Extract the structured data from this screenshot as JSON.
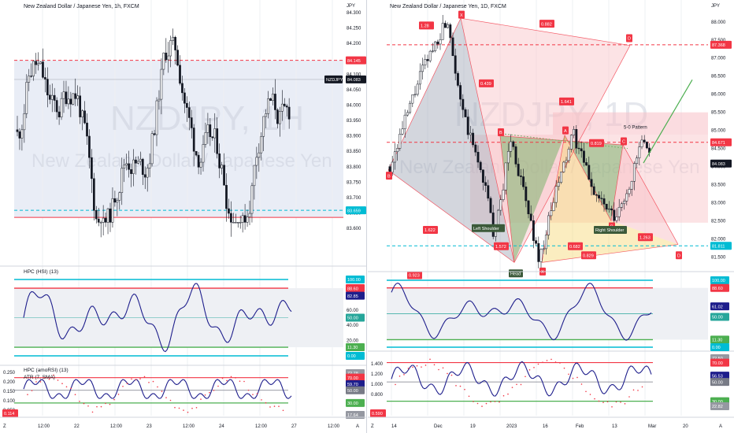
{
  "left": {
    "title": "New Zealand Dollar / Japanese Yen, 1h, FXCM",
    "watermark": "NZDJPY, 1H",
    "watermark_sub": "New Zealand Dollar / Japanese Yen",
    "currency": "JPY",
    "y_ticks": [
      "84.300",
      "84.250",
      "84.200",
      "84.150",
      "84.100",
      "84.050",
      "84.000",
      "83.950",
      "83.900",
      "83.850",
      "83.800",
      "83.750",
      "83.700",
      "83.650",
      "83.600"
    ],
    "ylim": [
      83.575,
      84.315
    ],
    "price_labels": [
      {
        "text": "84.145",
        "value": 84.145,
        "color": "#f23645"
      },
      {
        "text": "NZDJPY",
        "value": 84.083,
        "color": "#131722"
      },
      {
        "text": "84.083",
        "value": 84.083,
        "color": "#131722"
      },
      {
        "text": "83.659",
        "value": 83.659,
        "color": "#00bcd4"
      }
    ],
    "hlines": [
      {
        "value": 84.145,
        "color": "#f23645",
        "dash": true
      },
      {
        "value": 83.659,
        "color": "#00bcd4",
        "dash": true
      },
      {
        "value": 83.636,
        "color": "#f23645",
        "dash": false
      }
    ],
    "x_ticks": [
      "12:00",
      "22",
      "12:00",
      "23",
      "12:00",
      "24",
      "12:00",
      "27",
      "12:00"
    ],
    "ind1": {
      "title": "HPC (HSI) (13)",
      "y_ticks": [
        "80.00",
        "60.00",
        "40.00",
        "20.00"
      ],
      "labels": [
        {
          "text": "100.00",
          "color": "#00bcd4"
        },
        {
          "text": "88.60",
          "color": "#f23645"
        },
        {
          "text": "82.85",
          "color": "#1e1e8c"
        },
        {
          "text": "50.00",
          "color": "#26a69a"
        },
        {
          "text": "11.30",
          "color": "#4caf50"
        },
        {
          "text": "0.00",
          "color": "#00bcd4"
        }
      ]
    },
    "ind2": {
      "title": "HPC (amoRSI) (13)",
      "title2": "ATR (7, SMA)",
      "y_ticks": [
        "0.250",
        "0.200",
        "0.150",
        "0.100",
        "0.050"
      ],
      "labels": [
        {
          "text": "72.78",
          "color": "#9598a1"
        },
        {
          "text": "70.00",
          "color": "#f23645"
        },
        {
          "text": "59.70",
          "color": "#1e1e8c"
        },
        {
          "text": "50.00",
          "color": "#787b86"
        },
        {
          "text": "30.00",
          "color": "#4caf50"
        },
        {
          "text": "17.64",
          "color": "#9598a1"
        }
      ],
      "left_badge": "0.114"
    }
  },
  "right": {
    "title": "New Zealand Dollar / Japanese Yen, 1D, FXCM",
    "watermark": "NZDJPY, 1D",
    "watermark_sub": "New Zealand Dollar / Japanese Yen",
    "currency": "JPY",
    "y_ticks": [
      "88.000",
      "87.500",
      "87.000",
      "86.500",
      "86.000",
      "85.500",
      "85.000",
      "84.500",
      "84.000",
      "83.500",
      "83.000",
      "82.500",
      "82.000",
      "81.500"
    ],
    "ylim": [
      81.25,
      88.3
    ],
    "price_labels": [
      {
        "text": "87.368",
        "value": 87.368,
        "color": "#f23645"
      },
      {
        "text": "84.671",
        "value": 84.671,
        "color": "#f23645"
      },
      {
        "text": "84.083",
        "value": 84.083,
        "color": "#131722"
      },
      {
        "text": "81.811",
        "value": 81.811,
        "color": "#00bcd4"
      }
    ],
    "x_ticks": [
      "14",
      "Dec",
      "19",
      "2023",
      "16",
      "Feb",
      "13",
      "Mar",
      "20"
    ],
    "pattern_label": "5-0 Pattern",
    "ratio_labels": [
      "1.28",
      "0.882",
      "0.439",
      "1.641",
      "0.819",
      "1.622",
      "1.572",
      "0.923",
      "0.682",
      "0.829",
      "1.263"
    ],
    "point_labels": [
      "X",
      "D",
      "B",
      "A",
      "C",
      "X",
      "B",
      "D",
      "B"
    ],
    "head_labels": [
      "Left Shoulder",
      "Head",
      "Right Shoulder"
    ],
    "ind1": {
      "labels": [
        {
          "text": "100.00",
          "color": "#00bcd4"
        },
        {
          "text": "88.60",
          "color": "#f23645"
        },
        {
          "text": "61.02",
          "color": "#1e1e8c"
        },
        {
          "text": "50.00",
          "color": "#26a69a"
        },
        {
          "text": "11.30",
          "color": "#4caf50"
        },
        {
          "text": "0.00",
          "color": "#00bcd4"
        }
      ]
    },
    "ind2": {
      "y_ticks": [
        "1.400",
        "1.200",
        "1.000",
        "0.800"
      ],
      "labels": [
        {
          "text": "72.50",
          "color": "#9598a1"
        },
        {
          "text": "70.00",
          "color": "#f23645"
        },
        {
          "text": "56.53",
          "color": "#1e1e8c"
        },
        {
          "text": "50.00",
          "color": "#787b86"
        },
        {
          "text": "30.00",
          "color": "#4caf50"
        },
        {
          "text": "22.82",
          "color": "#9598a1"
        }
      ],
      "left_badge": "0.590"
    }
  },
  "corner": {
    "z": "Z",
    "a": "A"
  }
}
